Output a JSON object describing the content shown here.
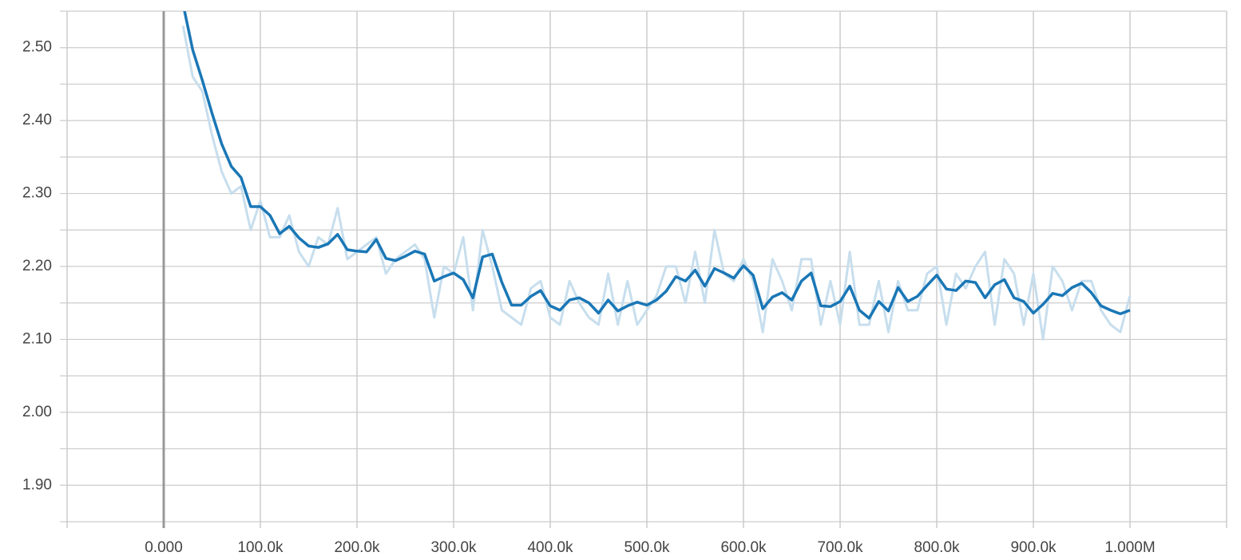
{
  "chart_data": {
    "type": "line",
    "xlim": [
      -100000,
      1100000
    ],
    "ylim": [
      1.85,
      2.55
    ],
    "xticks": [
      {
        "value": 0,
        "label": "0.000"
      },
      {
        "value": 100000,
        "label": "100.0k"
      },
      {
        "value": 200000,
        "label": "200.0k"
      },
      {
        "value": 300000,
        "label": "300.0k"
      },
      {
        "value": 400000,
        "label": "400.0k"
      },
      {
        "value": 500000,
        "label": "500.0k"
      },
      {
        "value": 600000,
        "label": "600.0k"
      },
      {
        "value": 700000,
        "label": "700.0k"
      },
      {
        "value": 800000,
        "label": "800.0k"
      },
      {
        "value": 900000,
        "label": "900.0k"
      },
      {
        "value": 1000000,
        "label": "1.000M"
      }
    ],
    "yticks": [
      {
        "value": 1.9,
        "label": "1.90"
      },
      {
        "value": 2.0,
        "label": "2.00"
      },
      {
        "value": 2.1,
        "label": "2.10"
      },
      {
        "value": 2.2,
        "label": "2.20"
      },
      {
        "value": 2.3,
        "label": "2.30"
      },
      {
        "value": 2.4,
        "label": "2.40"
      },
      {
        "value": 2.5,
        "label": "2.50"
      }
    ],
    "y_minor_ticks": [
      1.85,
      1.95,
      2.05,
      2.15,
      2.25,
      2.35,
      2.45,
      2.55
    ],
    "grid": true,
    "x": [
      20000,
      30000,
      40000,
      50000,
      60000,
      70000,
      80000,
      90000,
      100000,
      110000,
      120000,
      130000,
      140000,
      150000,
      160000,
      170000,
      180000,
      190000,
      200000,
      210000,
      220000,
      230000,
      240000,
      250000,
      260000,
      270000,
      280000,
      290000,
      300000,
      310000,
      320000,
      330000,
      340000,
      350000,
      360000,
      370000,
      380000,
      390000,
      400000,
      410000,
      420000,
      430000,
      440000,
      450000,
      460000,
      470000,
      480000,
      490000,
      500000,
      510000,
      520000,
      530000,
      540000,
      550000,
      560000,
      570000,
      580000,
      590000,
      600000,
      610000,
      620000,
      630000,
      640000,
      650000,
      660000,
      670000,
      680000,
      690000,
      700000,
      710000,
      720000,
      730000,
      740000,
      750000,
      760000,
      770000,
      780000,
      790000,
      800000,
      810000,
      820000,
      830000,
      840000,
      850000,
      860000,
      870000,
      880000,
      890000,
      900000,
      910000,
      920000,
      930000,
      940000,
      950000,
      960000,
      970000,
      980000,
      990000,
      1000000
    ],
    "series": [
      {
        "color": "#c7deed",
        "values": [
          2.53,
          2.46,
          2.44,
          2.38,
          2.33,
          2.3,
          2.31,
          2.25,
          2.29,
          2.24,
          2.24,
          2.27,
          2.22,
          2.2,
          2.24,
          2.23,
          2.28,
          2.21,
          2.22,
          2.23,
          2.24,
          2.19,
          2.21,
          2.22,
          2.23,
          2.21,
          2.13,
          2.2,
          2.19,
          2.24,
          2.14,
          2.25,
          2.2,
          2.14,
          2.13,
          2.12,
          2.17,
          2.18,
          2.13,
          2.12,
          2.18,
          2.15,
          2.13,
          2.12,
          2.19,
          2.12,
          2.18,
          2.12,
          2.14,
          2.16,
          2.2,
          2.2,
          2.15,
          2.22,
          2.15,
          2.25,
          2.19,
          2.18,
          2.21,
          2.18,
          2.11,
          2.21,
          2.18,
          2.14,
          2.21,
          2.21,
          2.12,
          2.18,
          2.12,
          2.22,
          2.12,
          2.12,
          2.18,
          2.11,
          2.18,
          2.14,
          2.14,
          2.19,
          2.2,
          2.12,
          2.19,
          2.17,
          2.2,
          2.22,
          2.12,
          2.21,
          2.19,
          2.12,
          2.19,
          2.1,
          2.2,
          2.18,
          2.14,
          2.18,
          2.18,
          2.14,
          2.12,
          2.11,
          2.16
        ]
      },
      {
        "color": "#1a77b6",
        "values": [
          2.56,
          2.497,
          2.455,
          2.41,
          2.368,
          2.337,
          2.322,
          2.282,
          2.282,
          2.27,
          2.245,
          2.255,
          2.239,
          2.228,
          2.226,
          2.231,
          2.244,
          2.223,
          2.221,
          2.22,
          2.237,
          2.211,
          2.208,
          2.214,
          2.221,
          2.217,
          2.18,
          2.186,
          2.191,
          2.182,
          2.157,
          2.213,
          2.217,
          2.178,
          2.147,
          2.147,
          2.159,
          2.167,
          2.146,
          2.14,
          2.154,
          2.157,
          2.15,
          2.136,
          2.154,
          2.139,
          2.146,
          2.151,
          2.147,
          2.154,
          2.166,
          2.186,
          2.18,
          2.195,
          2.173,
          2.197,
          2.191,
          2.184,
          2.201,
          2.188,
          2.142,
          2.158,
          2.164,
          2.154,
          2.18,
          2.191,
          2.146,
          2.145,
          2.152,
          2.173,
          2.14,
          2.129,
          2.152,
          2.139,
          2.171,
          2.152,
          2.159,
          2.174,
          2.188,
          2.169,
          2.167,
          2.18,
          2.178,
          2.157,
          2.175,
          2.182,
          2.157,
          2.152,
          2.136,
          2.148,
          2.163,
          2.16,
          2.171,
          2.177,
          2.164,
          2.146,
          2.14,
          2.135,
          2.14
        ]
      }
    ]
  }
}
